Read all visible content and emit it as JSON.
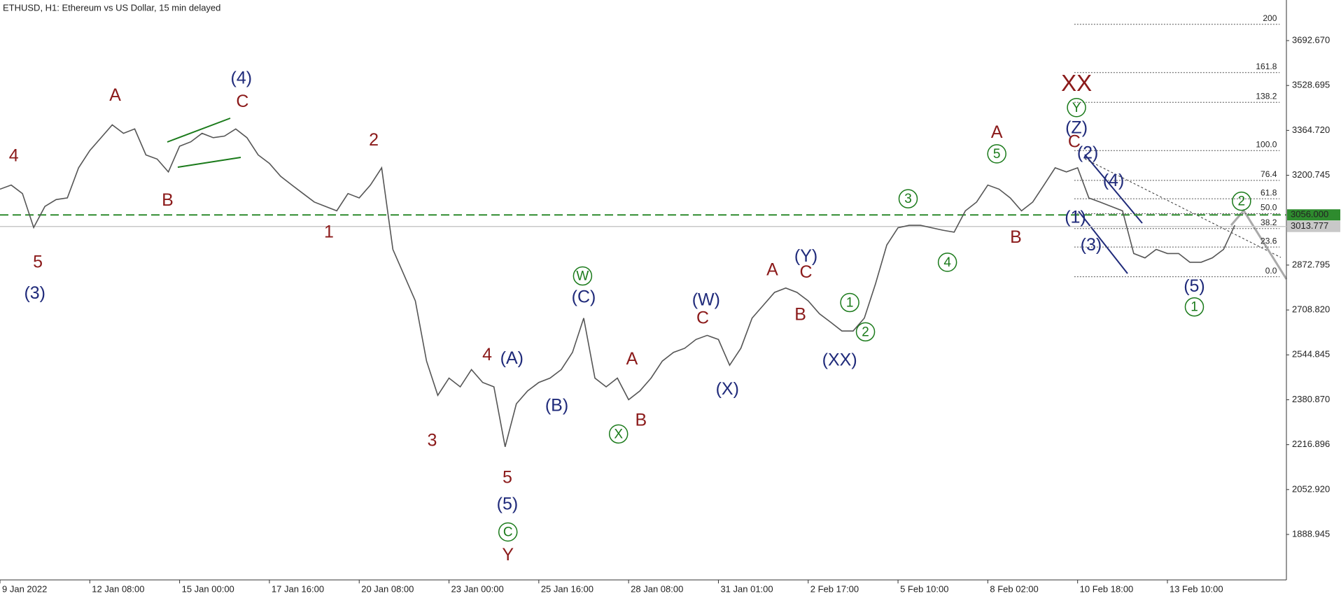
{
  "chart_data": {
    "type": "line",
    "title": "ETHUSD, H1:  Ethereum vs US Dollar, 15 min delayed",
    "color": "#555555",
    "values": [
      3150,
      3165,
      3134,
      3010,
      3087,
      3112,
      3118,
      3228,
      3291,
      3338,
      3385,
      3354,
      3370,
      3275,
      3260,
      3213,
      3307,
      3323,
      3354,
      3338,
      3344,
      3370,
      3338,
      3275,
      3244,
      3197,
      3165,
      3134,
      3103,
      3087,
      3071,
      3134,
      3118,
      3165,
      3228,
      2930,
      2836,
      2742,
      2522,
      2397,
      2460,
      2428,
      2491,
      2444,
      2428,
      2209,
      2366,
      2413,
      2444,
      2460,
      2491,
      2554,
      2679,
      2460,
      2428,
      2460,
      2381,
      2413,
      2460,
      2522,
      2554,
      2569,
      2601,
      2616,
      2601,
      2507,
      2569,
      2679,
      2726,
      2773,
      2789,
      2773,
      2742,
      2695,
      2664,
      2632,
      2632,
      2679,
      2805,
      2946,
      3009,
      3018,
      3018,
      3009,
      3000,
      2993,
      3071,
      3103,
      3165,
      3150,
      3118,
      3071,
      3103,
      3165,
      3228,
      3213,
      3228,
      3118,
      3103,
      3087,
      3071,
      2915,
      2899,
      2930,
      2915,
      2915,
      2883,
      2883,
      2899,
      2930,
      3018
    ],
    "xlim": [
      0,
      114.6
    ],
    "ylim": [
      1722.9,
      3840.9
    ],
    "xticks": [
      {
        "value": 0,
        "label": "9 Jan 2022"
      },
      {
        "value": 8,
        "label": "12 Jan 08:00"
      },
      {
        "value": 16,
        "label": "15 Jan 00:00"
      },
      {
        "value": 24,
        "label": "17 Jan 16:00"
      },
      {
        "value": 32,
        "label": "20 Jan 08:00"
      },
      {
        "value": 40,
        "label": "23 Jan 00:00"
      },
      {
        "value": 48,
        "label": "25 Jan 16:00"
      },
      {
        "value": 56,
        "label": "28 Jan 08:00"
      },
      {
        "value": 64,
        "label": "31 Jan 01:00"
      },
      {
        "value": 72,
        "label": "2 Feb 17:00"
      },
      {
        "value": 80,
        "label": "5 Feb 10:00"
      },
      {
        "value": 88,
        "label": "8 Feb 02:00"
      },
      {
        "value": 96,
        "label": "10 Feb 18:00"
      },
      {
        "value": 104,
        "label": "13 Feb 10:00"
      }
    ],
    "yticks": [
      {
        "value": 3692.67,
        "label": "3692.670"
      },
      {
        "value": 3528.695,
        "label": "3528.695"
      },
      {
        "value": 3364.72,
        "label": "3364.720"
      },
      {
        "value": 3200.745,
        "label": "3200.745"
      },
      {
        "value": 2872.795,
        "label": "2872.795"
      },
      {
        "value": 2708.82,
        "label": "2708.820"
      },
      {
        "value": 2544.845,
        "label": "2544.845"
      },
      {
        "value": 2380.87,
        "label": "2380.870"
      },
      {
        "value": 2216.896,
        "label": "2216.896"
      },
      {
        "value": 2052.92,
        "label": "2052.920"
      },
      {
        "value": 1888.945,
        "label": "1888.945"
      }
    ],
    "horizontal_lines": [
      {
        "value": 3056.0,
        "label": "3056.000",
        "color": "#2e8b2e",
        "style": "dashed"
      },
      {
        "value": 3013.777,
        "label": "3013.777",
        "color": "#c8c8c8",
        "style": "solid"
      }
    ],
    "fibonacci": {
      "x": [
        95.7,
        114
      ],
      "low": 2830,
      "high": 3291,
      "levels": [
        200,
        161.8,
        138.2,
        {
          "value": 100,
          "label": "100.0"
        },
        76.4,
        61.8,
        {
          "value": 50,
          "label": "50.0"
        },
        38.2,
        23.6,
        {
          "value": 0,
          "label": "0.0"
        }
      ]
    },
    "annotations": [
      {
        "text": "4",
        "x": 1.23,
        "y": 3272,
        "color": "#8b1a1a"
      },
      {
        "text": "5",
        "x": 3.37,
        "y": 2883,
        "color": "#8b1a1a"
      },
      {
        "text": "A",
        "x": 10.26,
        "y": 3492,
        "color": "#8b1a1a"
      },
      {
        "text": "B",
        "x": 14.93,
        "y": 3109,
        "color": "#8b1a1a"
      },
      {
        "text": "C",
        "x": 21.6,
        "y": 3470,
        "color": "#8b1a1a"
      },
      {
        "text": "2",
        "x": 33.3,
        "y": 3329,
        "color": "#8b1a1a"
      },
      {
        "text": "1",
        "x": 29.3,
        "y": 2993,
        "color": "#8b1a1a"
      },
      {
        "text": "4",
        "x": 43.4,
        "y": 2545,
        "color": "#8b1a1a"
      },
      {
        "text": "3",
        "x": 38.5,
        "y": 2231,
        "color": "#8b1a1a"
      },
      {
        "text": "5",
        "x": 45.2,
        "y": 2096,
        "color": "#8b1a1a"
      },
      {
        "text": "Y",
        "x": 45.25,
        "y": 1814,
        "color": "#8b1a1a"
      },
      {
        "text": "A",
        "x": 56.3,
        "y": 2529,
        "color": "#8b1a1a"
      },
      {
        "text": "B",
        "x": 57.1,
        "y": 2306,
        "color": "#8b1a1a"
      },
      {
        "text": "C",
        "x": 62.6,
        "y": 2679,
        "color": "#8b1a1a"
      },
      {
        "text": "A",
        "x": 68.8,
        "y": 2855,
        "color": "#8b1a1a"
      },
      {
        "text": "C",
        "x": 71.8,
        "y": 2846,
        "color": "#8b1a1a"
      },
      {
        "text": "B",
        "x": 71.3,
        "y": 2692,
        "color": "#8b1a1a"
      },
      {
        "text": "A",
        "x": 88.8,
        "y": 3357,
        "color": "#8b1a1a"
      },
      {
        "text": "B",
        "x": 90.5,
        "y": 2974,
        "color": "#8b1a1a"
      },
      {
        "text": "C",
        "x": 95.7,
        "y": 3322,
        "color": "#8b1a1a"
      },
      {
        "text": "XX",
        "x": 95.9,
        "y": 3533,
        "color": "#8b1a1a"
      },
      {
        "text": "(4)",
        "x": 21.5,
        "y": 3555,
        "color": "#1f2a7a"
      },
      {
        "text": "(3)",
        "x": 3.1,
        "y": 2770,
        "color": "#1f2a7a"
      },
      {
        "text": "(A)",
        "x": 45.6,
        "y": 2532,
        "color": "#1f2a7a"
      },
      {
        "text": "(B)",
        "x": 49.6,
        "y": 2359,
        "color": "#1f2a7a"
      },
      {
        "text": "(C)",
        "x": 52,
        "y": 2755,
        "color": "#1f2a7a"
      },
      {
        "text": "(5)",
        "x": 45.2,
        "y": 1999,
        "color": "#1f2a7a"
      },
      {
        "text": "(W)",
        "x": 62.9,
        "y": 2745,
        "color": "#1f2a7a"
      },
      {
        "text": "(X)",
        "x": 64.8,
        "y": 2419,
        "color": "#1f2a7a"
      },
      {
        "text": "(Y)",
        "x": 71.8,
        "y": 2905,
        "color": "#1f2a7a"
      },
      {
        "text": "(XX)",
        "x": 74.8,
        "y": 2526,
        "color": "#1f2a7a"
      },
      {
        "text": "(Z)",
        "x": 95.9,
        "y": 3373,
        "color": "#1f2a7a"
      },
      {
        "text": "(2)",
        "x": 96.9,
        "y": 3282,
        "color": "#1f2a7a"
      },
      {
        "text": "(4)",
        "x": 99.2,
        "y": 3181,
        "color": "#1f2a7a"
      },
      {
        "text": "(1)",
        "x": 95.8,
        "y": 3046,
        "color": "#1f2a7a"
      },
      {
        "text": "(3)",
        "x": 97.2,
        "y": 2946,
        "color": "#1f2a7a"
      },
      {
        "text": "(5)",
        "x": 106.4,
        "y": 2795,
        "color": "#1f2a7a"
      },
      {
        "text": "W",
        "x": 51.9,
        "y": 2833,
        "color": "#1a7a1a",
        "circled": true
      },
      {
        "text": "X",
        "x": 55.1,
        "y": 2256,
        "color": "#1a7a1a",
        "circled": true
      },
      {
        "text": "C",
        "x": 45.25,
        "y": 1898,
        "color": "#1a7a1a",
        "circled": true
      },
      {
        "text": "1",
        "x": 75.7,
        "y": 2736,
        "color": "#1a7a1a",
        "circled": true
      },
      {
        "text": "2",
        "x": 77.1,
        "y": 2629,
        "color": "#1a7a1a",
        "circled": true
      },
      {
        "text": "3",
        "x": 80.9,
        "y": 3115,
        "color": "#1a7a1a",
        "circled": true
      },
      {
        "text": "4",
        "x": 84.4,
        "y": 2883,
        "color": "#1a7a1a",
        "circled": true
      },
      {
        "text": "5",
        "x": 88.8,
        "y": 3279,
        "color": "#1a7a1a",
        "circled": true
      },
      {
        "text": "Y",
        "x": 95.9,
        "y": 3448,
        "color": "#1a7a1a",
        "circled": true
      },
      {
        "text": "1",
        "x": 106.4,
        "y": 2720,
        "color": "#1a7a1a",
        "circled": true
      },
      {
        "text": "2",
        "x": 110.6,
        "y": 3106,
        "color": "#1a7a1a",
        "circled": true
      }
    ]
  }
}
